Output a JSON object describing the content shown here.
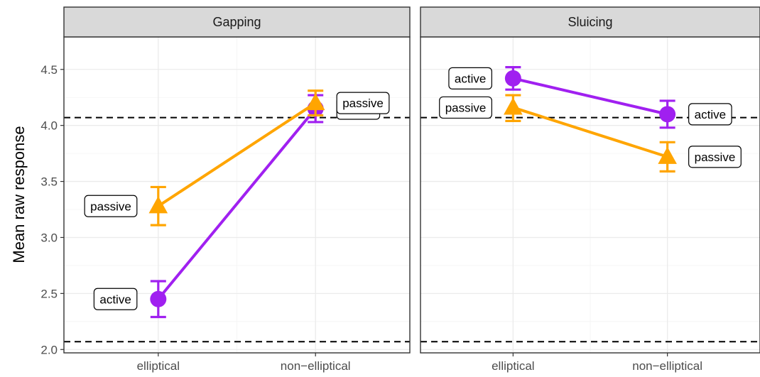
{
  "chart_data": {
    "type": "line",
    "facet_labels": [
      "Gapping",
      "Sluicing"
    ],
    "categories": [
      "elliptical",
      "non−elliptical"
    ],
    "ylabel": "Mean raw response",
    "xlabel": "",
    "ylim": [
      1.97,
      4.79
    ],
    "yticks": [
      2.0,
      2.5,
      3.0,
      3.5,
      4.0,
      4.5
    ],
    "ytick_labels": [
      "2.0",
      "2.5",
      "3.0",
      "3.5",
      "4.0",
      "4.5"
    ],
    "reference_lines": [
      4.07,
      2.07
    ],
    "grid": true,
    "colors": {
      "active": "#a020f0",
      "passive": "#ffa500"
    },
    "panels": [
      {
        "facet": "Gapping",
        "series": [
          {
            "label": "active",
            "marker": "circle",
            "color": "#a020f0",
            "values": [
              2.45,
              4.15
            ],
            "errors_low": [
              2.29,
              4.03
            ],
            "errors_high": [
              2.61,
              4.27
            ],
            "label_side": [
              "left",
              "right"
            ]
          },
          {
            "label": "passive",
            "marker": "triangle",
            "color": "#ffa500",
            "values": [
              3.28,
              4.2
            ],
            "errors_low": [
              3.11,
              4.09
            ],
            "errors_high": [
              3.45,
              4.31
            ],
            "label_side": [
              "left",
              "right"
            ]
          }
        ]
      },
      {
        "facet": "Sluicing",
        "series": [
          {
            "label": "active",
            "marker": "circle",
            "color": "#a020f0",
            "values": [
              4.42,
              4.1
            ],
            "errors_low": [
              4.32,
              3.98
            ],
            "errors_high": [
              4.52,
              4.22
            ],
            "label_side": [
              "left",
              "right"
            ]
          },
          {
            "label": "passive",
            "marker": "triangle",
            "color": "#ffa500",
            "values": [
              4.16,
              3.72
            ],
            "errors_low": [
              4.04,
              3.59
            ],
            "errors_high": [
              4.27,
              3.85
            ],
            "label_side": [
              "left",
              "right"
            ]
          }
        ]
      }
    ]
  }
}
